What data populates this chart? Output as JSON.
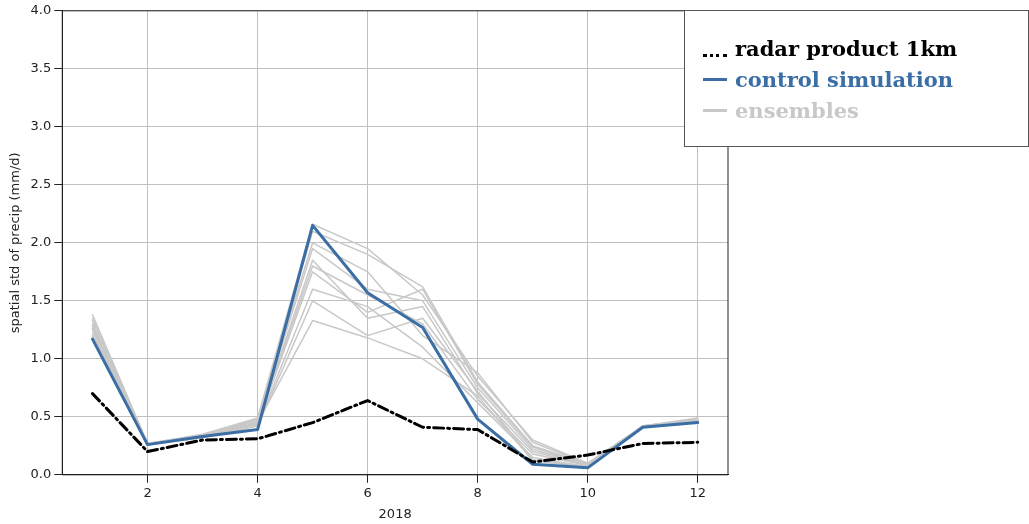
{
  "chart_data": {
    "type": "line",
    "xlabel": "2018",
    "ylabel": "spatial std of precip (mm/d)",
    "x": [
      1,
      2,
      3,
      4,
      5,
      6,
      7,
      8,
      9,
      10,
      11,
      12
    ],
    "xlim": [
      0.45,
      12.55
    ],
    "xticks": [
      2,
      4,
      6,
      8,
      10,
      12
    ],
    "ylim": [
      0,
      4
    ],
    "yticks": [
      {
        "value": 0,
        "label": "0.0"
      },
      {
        "value": 0.5,
        "label": "0.5"
      },
      {
        "value": 1,
        "label": "1.0"
      },
      {
        "value": 1.5,
        "label": "1.5"
      },
      {
        "value": 2,
        "label": "2.0"
      },
      {
        "value": 2.5,
        "label": "2.5"
      },
      {
        "value": 3,
        "label": "3.0"
      },
      {
        "value": 3.5,
        "label": "3.5"
      },
      {
        "value": 4,
        "label": "4.0"
      }
    ],
    "grid": true,
    "legend": "top right",
    "marker": "none",
    "series": [
      {
        "name": "radar product 1km",
        "color": "#000000",
        "line_style": "dashed",
        "values": [
          0.7,
          0.2,
          0.3,
          0.31,
          0.45,
          0.64,
          0.41,
          0.39,
          0.11,
          0.17,
          0.27,
          0.28
        ]
      },
      {
        "name": "control simulation",
        "color": "#3a6ea5",
        "line_style": "solid",
        "values": [
          1.17,
          0.26,
          0.33,
          0.39,
          2.15,
          1.57,
          1.27,
          0.48,
          0.09,
          0.06,
          0.41,
          0.45
        ]
      },
      {
        "name": "ensembles",
        "color": "#c8c8c8",
        "line_style": "solid",
        "values": [
          1.38,
          0.27,
          0.35,
          0.49,
          2.16,
          1.95,
          1.55,
          0.85,
          0.3,
          0.1,
          0.42,
          0.49
        ]
      },
      {
        "color": "#c8c8c8",
        "line_style": "solid",
        "values": [
          1.33,
          0.27,
          0.34,
          0.47,
          2.1,
          1.9,
          1.62,
          0.8,
          0.25,
          0.09,
          0.42,
          0.48
        ]
      },
      {
        "color": "#c8c8c8",
        "line_style": "solid",
        "values": [
          1.3,
          0.26,
          0.34,
          0.46,
          1.95,
          1.6,
          1.5,
          0.75,
          0.22,
          0.08,
          0.42,
          0.48
        ]
      },
      {
        "color": "#c8c8c8",
        "line_style": "solid",
        "values": [
          1.28,
          0.26,
          0.33,
          0.45,
          1.85,
          1.35,
          1.45,
          0.7,
          0.2,
          0.08,
          0.42,
          0.47
        ]
      },
      {
        "color": "#c8c8c8",
        "line_style": "solid",
        "values": [
          1.25,
          0.26,
          0.33,
          0.44,
          1.8,
          1.55,
          1.3,
          0.65,
          0.18,
          0.08,
          0.41,
          0.47
        ]
      },
      {
        "color": "#c8c8c8",
        "line_style": "solid",
        "values": [
          1.22,
          0.26,
          0.33,
          0.43,
          1.6,
          1.45,
          1.1,
          0.62,
          0.15,
          0.07,
          0.41,
          0.46
        ]
      },
      {
        "color": "#c8c8c8",
        "line_style": "solid",
        "values": [
          1.2,
          0.26,
          0.32,
          0.42,
          1.5,
          1.2,
          1.35,
          0.72,
          0.13,
          0.07,
          0.41,
          0.46
        ]
      },
      {
        "color": "#c8c8c8",
        "line_style": "solid",
        "values": [
          1.26,
          0.26,
          0.33,
          0.45,
          1.33,
          1.18,
          1.0,
          0.68,
          0.12,
          0.07,
          0.41,
          0.47
        ]
      },
      {
        "color": "#c8c8c8",
        "line_style": "solid",
        "values": [
          1.35,
          0.27,
          0.34,
          0.48,
          2.0,
          1.75,
          1.2,
          0.88,
          0.28,
          0.09,
          0.42,
          0.48
        ]
      },
      {
        "color": "#c8c8c8",
        "line_style": "solid",
        "values": [
          1.29,
          0.26,
          0.33,
          0.44,
          1.75,
          1.4,
          1.6,
          0.78,
          0.24,
          0.08,
          0.41,
          0.47
        ]
      }
    ]
  }
}
